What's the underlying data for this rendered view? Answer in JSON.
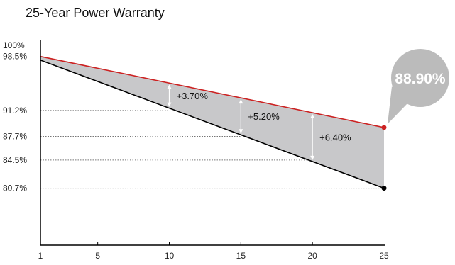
{
  "chart_data": {
    "type": "line",
    "title": "25-Year Power Warranty",
    "xlabel": "",
    "ylabel": "",
    "x_ticks": [
      "1",
      "5",
      "10",
      "15",
      "20",
      "25"
    ],
    "y_ticks": [
      "100%",
      "98.5%",
      "91.2%",
      "87.7%",
      "84.5%",
      "80.7%"
    ],
    "xlim": [
      1,
      25
    ],
    "ylim": [
      73,
      100
    ],
    "series": [
      {
        "values": [
          [
            1,
            98.5
          ],
          [
            25,
            88.9
          ]
        ],
        "color": "#cc2222"
      },
      {
        "values": [
          [
            1,
            98.0
          ],
          [
            25,
            80.7
          ]
        ],
        "color": "#000000"
      }
    ],
    "gridlines": [
      {
        "y": 91.2,
        "x_end": 10
      },
      {
        "y": 87.7,
        "x_end": 15
      },
      {
        "y": 84.5,
        "x_end": 20
      },
      {
        "y": 80.7,
        "x_end": 25
      }
    ],
    "differences": [
      {
        "x": 10,
        "label": "+3.70%"
      },
      {
        "x": 15,
        "label": "+5.20%"
      },
      {
        "x": 20,
        "label": "+6.40%"
      }
    ],
    "callout": {
      "label": "88.90%",
      "color": "#bbbbbb"
    },
    "fill_color": "#c8c8ca",
    "grid": true,
    "legend": "none"
  }
}
